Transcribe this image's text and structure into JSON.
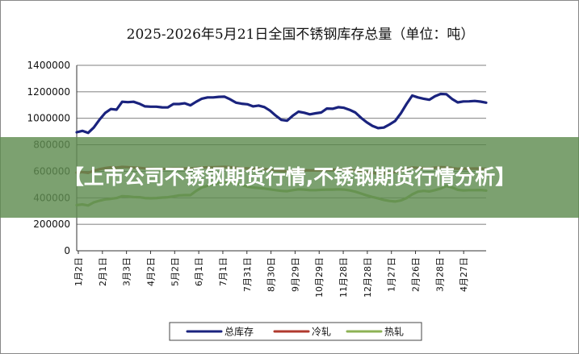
{
  "banner": {
    "text": "【上市公司不锈钢期货行情,不锈钢期货行情分析】"
  },
  "chart_data": {
    "type": "line",
    "title": "2025-2026年5月21日全国不锈钢库存总量（单位：吨）",
    "ylim": [
      0,
      1400000
    ],
    "yticks": [
      "0",
      "200000",
      "400000",
      "600000",
      "800000",
      "1000000",
      "1200000",
      "1400000"
    ],
    "xticks": [
      "1月2日",
      "2月1日",
      "3月3日",
      "4月2日",
      "5月2日",
      "6月1日",
      "7月1日",
      "7月31日",
      "8月30日",
      "9月29日",
      "10月29日",
      "11月28日",
      "12月28日",
      "1月27日",
      "2月26日",
      "3月28日",
      "4月27日"
    ],
    "grid": true,
    "legend_position": "bottom",
    "series": [
      {
        "name": "总库存",
        "color": "#1a237e",
        "values": [
          895000,
          905000,
          890000,
          930000,
          990000,
          1040000,
          1070000,
          1065000,
          1125000,
          1122000,
          1125000,
          1110000,
          1090000,
          1088000,
          1088000,
          1083000,
          1082000,
          1108000,
          1108000,
          1113000,
          1098000,
          1125000,
          1148000,
          1158000,
          1158000,
          1162000,
          1163000,
          1143000,
          1118000,
          1110000,
          1106000,
          1090000,
          1096000,
          1085000,
          1058000,
          1020000,
          988000,
          982000,
          1020000,
          1050000,
          1042000,
          1030000,
          1038000,
          1044000,
          1074000,
          1072000,
          1084000,
          1079000,
          1064000,
          1044000,
          1004000,
          970000,
          943000,
          926000,
          930000,
          953000,
          980000,
          1038000,
          1108000,
          1172000,
          1158000,
          1148000,
          1140000,
          1166000,
          1184000,
          1182000,
          1146000,
          1120000,
          1127000,
          1128000,
          1131000,
          1126000,
          1118000
        ]
      },
      {
        "name": "冷轧",
        "color": "#b03a2e",
        "values": [
          590000,
          594000,
          588000,
          604000,
          616000,
          624000,
          630000,
          628000,
          633000,
          631000,
          628000,
          626000,
          622000,
          620000,
          619000,
          619000,
          618000,
          621000,
          620000,
          622000,
          620000,
          624000,
          628000,
          630000,
          630000,
          632000,
          633000,
          631000,
          627000,
          624000,
          622000,
          619000,
          620000,
          618000,
          613000,
          607000,
          602000,
          601000,
          606000,
          610000,
          608000,
          606000,
          607000,
          608000,
          612000,
          611000,
          613000,
          612000,
          609000,
          605000,
          598000,
          592000,
          588000,
          584000,
          585000,
          589000,
          594000,
          604000,
          617000,
          629000,
          626000,
          624000,
          622000,
          627000,
          631000,
          630000,
          624000,
          619000,
          620000,
          620000,
          621000,
          620000,
          618000
        ]
      },
      {
        "name": "热轧",
        "color": "#8db255",
        "values": [
          345000,
          350000,
          342000,
          365000,
          378000,
          388000,
          392000,
          398000,
          412000,
          410000,
          406000,
          404000,
          398000,
          396000,
          398000,
          402000,
          404000,
          410000,
          418000,
          420000,
          420000,
          452000,
          478000,
          490000,
          505000,
          512000,
          518000,
          520000,
          512000,
          496000,
          484000,
          478000,
          474000,
          470000,
          464000,
          458000,
          452000,
          450000,
          458000,
          464000,
          462000,
          458000,
          458000,
          460000,
          462000,
          462000,
          464000,
          462000,
          456000,
          446000,
          432000,
          418000,
          406000,
          396000,
          384000,
          376000,
          372000,
          380000,
          398000,
          426000,
          446000,
          452000,
          448000,
          458000,
          470000,
          488000,
          478000,
          460000,
          456000,
          458000,
          458000,
          459000,
          455000
        ]
      }
    ],
    "legend": [
      "总库存",
      "冷轧",
      "热轧"
    ]
  }
}
